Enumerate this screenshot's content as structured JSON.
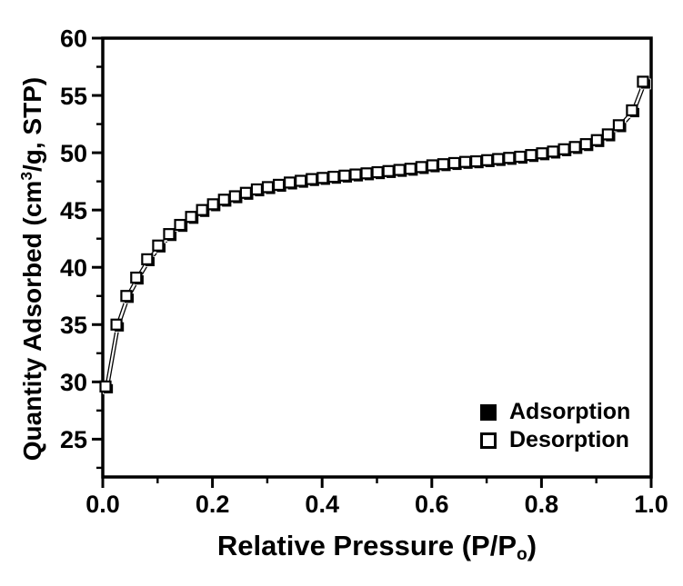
{
  "figure": {
    "background": "#ffffff",
    "foreground": "#000000"
  },
  "chart_data": {
    "type": "scatter",
    "title": "",
    "xlabel": {
      "text": "Relative Pressure (P/P",
      "sub": "o",
      "suffix": ")"
    },
    "ylabel": {
      "text": "Quantity Adsorbed (cm",
      "sup": "3",
      "suffix": "/g, STP)"
    },
    "xlim": [
      0.0,
      1.0
    ],
    "ylim": [
      21.7,
      60
    ],
    "grid": false,
    "x_major_ticks": [
      0.0,
      0.2,
      0.4,
      0.6,
      0.8,
      1.0
    ],
    "x_tick_labels": [
      "0.0",
      "0.2",
      "0.4",
      "0.6",
      "0.8",
      "1.0"
    ],
    "x_minor_ticks": [
      0.1,
      0.3,
      0.5,
      0.7,
      0.9
    ],
    "y_major_ticks": [
      25,
      30,
      35,
      40,
      45,
      50,
      55,
      60
    ],
    "y_tick_labels": [
      "25",
      "30",
      "35",
      "40",
      "45",
      "50",
      "55",
      "60"
    ],
    "y_minor_ticks": [
      22.5,
      27.5,
      32.5,
      37.5,
      42.5,
      47.5,
      52.5,
      57.5
    ],
    "legend": {
      "position": "lower-right",
      "entries": [
        {
          "label": "Adsorption",
          "marker": "filled-square"
        },
        {
          "label": "Desorption",
          "marker": "open-square"
        }
      ]
    },
    "series": [
      {
        "name": "Adsorption",
        "marker": "filled-square",
        "color": "#000000",
        "x": [
          0.01,
          0.03,
          0.048,
          0.066,
          0.086,
          0.106,
          0.126,
          0.146,
          0.166,
          0.186,
          0.206,
          0.226,
          0.246,
          0.266,
          0.286,
          0.306,
          0.326,
          0.346,
          0.366,
          0.386,
          0.406,
          0.426,
          0.446,
          0.466,
          0.486,
          0.506,
          0.526,
          0.546,
          0.566,
          0.586,
          0.606,
          0.626,
          0.646,
          0.666,
          0.686,
          0.706,
          0.726,
          0.746,
          0.766,
          0.786,
          0.806,
          0.826,
          0.846,
          0.866,
          0.886,
          0.906,
          0.926,
          0.946,
          0.97,
          0.99
        ],
        "y": [
          29.4,
          34.8,
          37.3,
          38.9,
          40.5,
          41.7,
          42.7,
          43.5,
          44.2,
          44.8,
          45.3,
          45.7,
          46.0,
          46.3,
          46.6,
          46.8,
          47.0,
          47.2,
          47.35,
          47.5,
          47.6,
          47.7,
          47.8,
          47.9,
          48.0,
          48.1,
          48.2,
          48.3,
          48.4,
          48.55,
          48.7,
          48.8,
          48.9,
          49.0,
          49.05,
          49.15,
          49.25,
          49.35,
          49.45,
          49.6,
          49.75,
          49.9,
          50.1,
          50.3,
          50.55,
          50.9,
          51.4,
          52.2,
          53.5,
          56.0
        ]
      },
      {
        "name": "Desorption",
        "marker": "open-square",
        "color": "#000000",
        "x": [
          0.005,
          0.025,
          0.043,
          0.061,
          0.081,
          0.101,
          0.121,
          0.141,
          0.161,
          0.181,
          0.201,
          0.221,
          0.241,
          0.261,
          0.281,
          0.301,
          0.321,
          0.341,
          0.361,
          0.381,
          0.401,
          0.421,
          0.441,
          0.461,
          0.481,
          0.501,
          0.521,
          0.541,
          0.561,
          0.581,
          0.601,
          0.621,
          0.641,
          0.661,
          0.681,
          0.701,
          0.721,
          0.741,
          0.761,
          0.781,
          0.801,
          0.821,
          0.841,
          0.861,
          0.881,
          0.901,
          0.921,
          0.941,
          0.965,
          0.985
        ],
        "y": [
          29.6,
          35.0,
          37.5,
          39.1,
          40.7,
          41.9,
          42.9,
          43.7,
          44.4,
          45.0,
          45.5,
          45.9,
          46.2,
          46.5,
          46.8,
          47.0,
          47.2,
          47.4,
          47.55,
          47.7,
          47.8,
          47.9,
          48.0,
          48.1,
          48.2,
          48.3,
          48.4,
          48.5,
          48.6,
          48.75,
          48.9,
          49.0,
          49.1,
          49.2,
          49.25,
          49.35,
          49.45,
          49.55,
          49.65,
          49.8,
          49.95,
          50.1,
          50.3,
          50.5,
          50.75,
          51.1,
          51.6,
          52.4,
          53.7,
          56.2
        ]
      }
    ]
  }
}
